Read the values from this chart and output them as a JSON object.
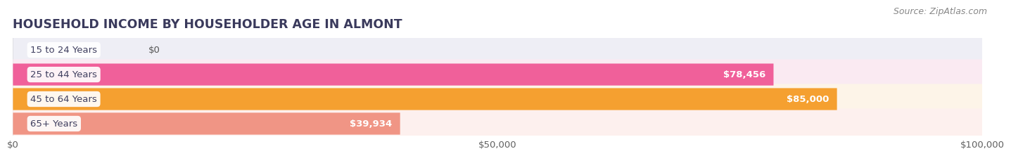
{
  "title": "HOUSEHOLD INCOME BY HOUSEHOLDER AGE IN ALMONT",
  "source": "Source: ZipAtlas.com",
  "categories": [
    "15 to 24 Years",
    "25 to 44 Years",
    "45 to 64 Years",
    "65+ Years"
  ],
  "values": [
    0,
    78456,
    85000,
    39934
  ],
  "bar_colors": [
    "#aaaad8",
    "#f0609a",
    "#f5a030",
    "#f09585"
  ],
  "bar_bg_colors": [
    "#eeeef5",
    "#faeaf2",
    "#fdf4e8",
    "#fdf0ee"
  ],
  "value_labels": [
    "$0",
    "$78,456",
    "$85,000",
    "$39,934"
  ],
  "xlim": [
    0,
    100000
  ],
  "xtick_labels": [
    "$0",
    "$50,000",
    "$100,000"
  ],
  "bg_color": "#ffffff",
  "title_color": "#3a3a5c",
  "source_color": "#888888",
  "label_color": "#404060",
  "value_color_inside": "#ffffff",
  "value_color_outside": "#555555",
  "bar_height": 0.62,
  "title_fontsize": 12.5,
  "label_fontsize": 9.5,
  "value_fontsize": 9.5,
  "tick_fontsize": 9.5,
  "source_fontsize": 9
}
